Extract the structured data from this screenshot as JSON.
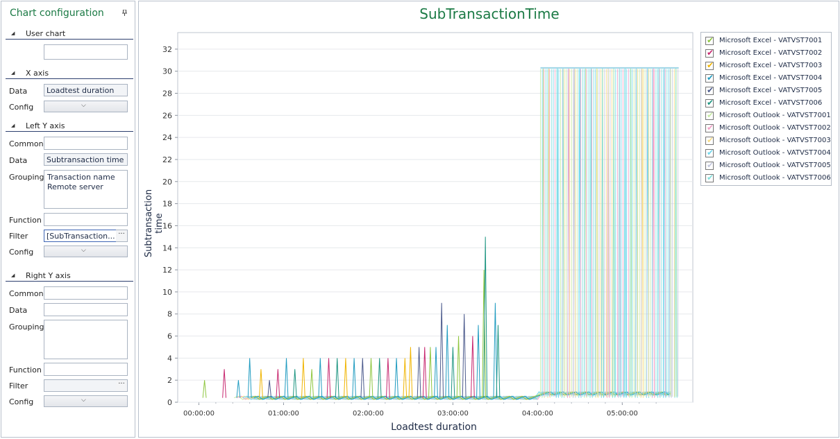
{
  "panel": {
    "title": "Chart configuration",
    "sections": {
      "user_chart": "User chart",
      "x_axis": "X axis",
      "left_y_axis": "Left Y axis",
      "right_y_axis": "Right Y axis"
    },
    "labels": {
      "data": "Data",
      "config": "Config",
      "common": "Common",
      "grouping": "Grouping",
      "function": "Function",
      "filter": "Filter"
    },
    "user_chart_value": "",
    "x_axis": {
      "data": "Loadtest duration"
    },
    "left_y": {
      "common": "",
      "data": "Subtransaction time",
      "grouping": [
        "Transaction name",
        "Remote server"
      ],
      "function": "",
      "filter": "[SubTransaction..."
    },
    "right_y": {
      "common": "",
      "data": "",
      "function": "",
      "filter": ""
    },
    "ellipsis": "···",
    "chevron": "⌄"
  },
  "chart_data": {
    "type": "line",
    "title": "SubTransactionTime",
    "xlabel": "Loadtest duration",
    "ylabel": "Subtransaction time",
    "x_ticks": [
      "00:00:00",
      "01:00:00",
      "02:00:00",
      "03:00:00",
      "04:00:00",
      "05:00:00"
    ],
    "y_ticks": [
      0,
      2,
      4,
      6,
      8,
      10,
      12,
      14,
      16,
      18,
      20,
      22,
      24,
      26,
      28,
      30,
      32
    ],
    "ylim": [
      0,
      33.5
    ],
    "xlim_minutes": [
      -15,
      350
    ],
    "grid": true,
    "legend_position": "right",
    "series": [
      {
        "name": "Microsoft Excel - VATVST7001",
        "color": "#8ec63f"
      },
      {
        "name": "Microsoft Excel - VATVST7002",
        "color": "#c7256e"
      },
      {
        "name": "Microsoft Excel - VATVST7003",
        "color": "#f0b400"
      },
      {
        "name": "Microsoft Excel - VATVST7004",
        "color": "#1f9bc0"
      },
      {
        "name": "Microsoft Excel - VATVST7005",
        "color": "#4b5a8c"
      },
      {
        "name": "Microsoft Excel - VATVST7006",
        "color": "#1b9480"
      },
      {
        "name": "Microsoft Outlook - VATVST7001",
        "color": "#c6eaa4"
      },
      {
        "name": "Microsoft Outlook - VATVST7002",
        "color": "#f2a0c6"
      },
      {
        "name": "Microsoft Outlook - VATVST7003",
        "color": "#f7dc85"
      },
      {
        "name": "Microsoft Outlook - VATVST7004",
        "color": "#6fd6ec"
      },
      {
        "name": "Microsoft Outlook - VATVST7005",
        "color": "#c2c6dc"
      },
      {
        "name": "Microsoft Outlook - VATVST7006",
        "color": "#7fe0dc"
      }
    ],
    "spikes": [
      {
        "x": 4,
        "y": 2,
        "s": 0
      },
      {
        "x": 18,
        "y": 3,
        "s": 1
      },
      {
        "x": 28,
        "y": 2,
        "s": 3
      },
      {
        "x": 36,
        "y": 4,
        "s": 3
      },
      {
        "x": 44,
        "y": 3,
        "s": 2
      },
      {
        "x": 50,
        "y": 2,
        "s": 4
      },
      {
        "x": 56,
        "y": 3,
        "s": 1
      },
      {
        "x": 62,
        "y": 4,
        "s": 3
      },
      {
        "x": 68,
        "y": 3,
        "s": 5
      },
      {
        "x": 74,
        "y": 4,
        "s": 2
      },
      {
        "x": 80,
        "y": 3,
        "s": 0
      },
      {
        "x": 86,
        "y": 4,
        "s": 3
      },
      {
        "x": 92,
        "y": 4,
        "s": 1
      },
      {
        "x": 98,
        "y": 4,
        "s": 5
      },
      {
        "x": 104,
        "y": 4,
        "s": 2
      },
      {
        "x": 110,
        "y": 4,
        "s": 3
      },
      {
        "x": 116,
        "y": 4,
        "s": 4
      },
      {
        "x": 122,
        "y": 4,
        "s": 0
      },
      {
        "x": 128,
        "y": 4,
        "s": 5
      },
      {
        "x": 134,
        "y": 4,
        "s": 1
      },
      {
        "x": 140,
        "y": 4,
        "s": 3
      },
      {
        "x": 146,
        "y": 4,
        "s": 2
      },
      {
        "x": 150,
        "y": 5,
        "s": 2
      },
      {
        "x": 156,
        "y": 5,
        "s": 4
      },
      {
        "x": 160,
        "y": 5,
        "s": 1
      },
      {
        "x": 164,
        "y": 5,
        "s": 0
      },
      {
        "x": 168,
        "y": 5,
        "s": 3
      },
      {
        "x": 172,
        "y": 9,
        "s": 4
      },
      {
        "x": 176,
        "y": 7,
        "s": 3
      },
      {
        "x": 180,
        "y": 5,
        "s": 5
      },
      {
        "x": 184,
        "y": 6,
        "s": 0
      },
      {
        "x": 188,
        "y": 8,
        "s": 4
      },
      {
        "x": 194,
        "y": 6,
        "s": 1
      },
      {
        "x": 198,
        "y": 7,
        "s": 3
      },
      {
        "x": 202,
        "y": 12,
        "s": 0
      },
      {
        "x": 203,
        "y": 15,
        "s": 5
      },
      {
        "x": 210,
        "y": 9,
        "s": 3
      },
      {
        "x": 212,
        "y": 7,
        "s": 5
      },
      {
        "x": 244,
        "y": 30.3,
        "s": 6
      },
      {
        "x": 248,
        "y": 30.3,
        "s": 8
      },
      {
        "x": 254,
        "y": 30.3,
        "s": 9
      },
      {
        "x": 258,
        "y": 30.3,
        "s": 11
      },
      {
        "x": 262,
        "y": 30.3,
        "s": 7
      },
      {
        "x": 266,
        "y": 30.3,
        "s": 10
      },
      {
        "x": 270,
        "y": 30.3,
        "s": 9
      },
      {
        "x": 274,
        "y": 30.3,
        "s": 6
      },
      {
        "x": 278,
        "y": 30.3,
        "s": 11
      },
      {
        "x": 282,
        "y": 30.3,
        "s": 8
      },
      {
        "x": 286,
        "y": 30.3,
        "s": 9
      },
      {
        "x": 290,
        "y": 30.3,
        "s": 7
      },
      {
        "x": 294,
        "y": 30.3,
        "s": 11
      },
      {
        "x": 298,
        "y": 30.3,
        "s": 10
      },
      {
        "x": 302,
        "y": 30.3,
        "s": 9
      },
      {
        "x": 306,
        "y": 30.3,
        "s": 6
      },
      {
        "x": 310,
        "y": 30.3,
        "s": 11
      },
      {
        "x": 314,
        "y": 30.3,
        "s": 8
      },
      {
        "x": 318,
        "y": 30.3,
        "s": 9
      },
      {
        "x": 322,
        "y": 30.3,
        "s": 7
      },
      {
        "x": 326,
        "y": 30.3,
        "s": 11
      },
      {
        "x": 330,
        "y": 30.3,
        "s": 9
      },
      {
        "x": 334,
        "y": 30.3,
        "s": 10
      },
      {
        "x": 338,
        "y": 30.3,
        "s": 11
      }
    ]
  }
}
